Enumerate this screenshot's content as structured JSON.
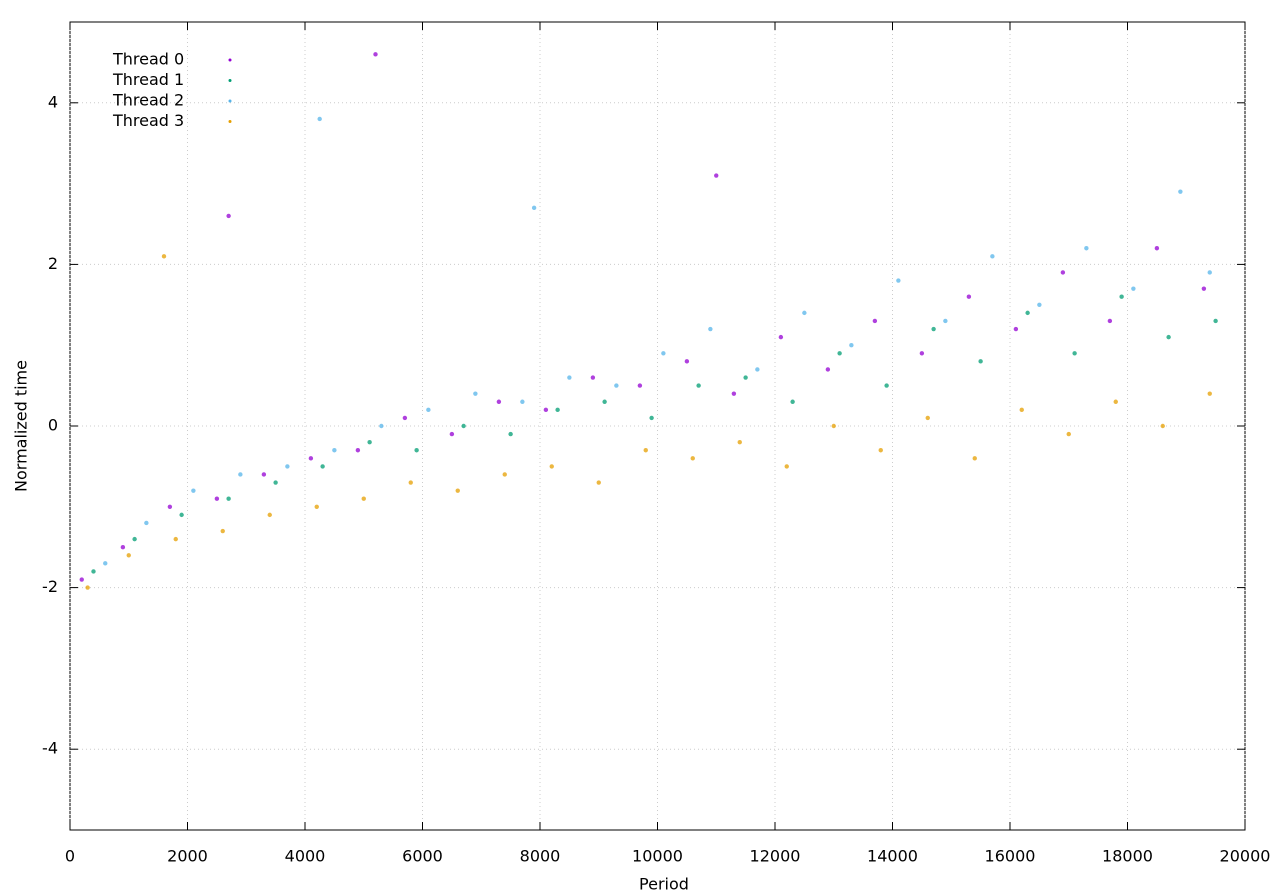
{
  "chart_data": {
    "type": "scatter",
    "x_label": "Period",
    "y_label": "Normalized time",
    "xlim": [
      0,
      20000
    ],
    "xticks": [
      0,
      2000,
      4000,
      6000,
      8000,
      10000,
      12000,
      14000,
      16000,
      18000,
      20000
    ],
    "ylim": [
      -5,
      5
    ],
    "yticks": [
      -4,
      -2,
      0,
      2,
      4
    ],
    "grid": true,
    "legend": "top-left",
    "series": [
      {
        "name": "Thread 0",
        "color": "#9400d3",
        "x": [
          200,
          900,
          1700,
          2500,
          3300,
          4100,
          4900,
          5700,
          6500,
          7300,
          8100,
          8900,
          9700,
          10500,
          11300,
          12100,
          12900,
          13700,
          14500,
          15300,
          16100,
          16900,
          17700,
          18500,
          19300,
          2700,
          5200,
          11000
        ],
        "values": [
          -1.9,
          -1.5,
          -1.0,
          -0.9,
          -0.6,
          -0.4,
          -0.3,
          0.1,
          -0.1,
          0.3,
          0.2,
          0.6,
          0.5,
          0.8,
          0.4,
          1.1,
          0.7,
          1.3,
          0.9,
          1.6,
          1.2,
          1.9,
          1.3,
          2.2,
          1.7,
          2.6,
          4.6,
          3.1
        ]
      },
      {
        "name": "Thread 1",
        "color": "#009e73",
        "x": [
          400,
          1100,
          1900,
          2700,
          3500,
          4300,
          5100,
          5900,
          6700,
          7500,
          8300,
          9100,
          9900,
          10700,
          11500,
          12300,
          13100,
          13900,
          14700,
          15500,
          16300,
          17100,
          17900,
          18700,
          19500
        ],
        "values": [
          -1.8,
          -1.4,
          -1.1,
          -0.9,
          -0.7,
          -0.5,
          -0.2,
          -0.3,
          0.0,
          -0.1,
          0.2,
          0.3,
          0.1,
          0.5,
          0.6,
          0.3,
          0.9,
          0.5,
          1.2,
          0.8,
          1.4,
          0.9,
          1.6,
          1.1,
          1.3
        ]
      },
      {
        "name": "Thread 2",
        "color": "#56b4e9",
        "x": [
          600,
          1300,
          2100,
          2900,
          3700,
          4500,
          5300,
          6100,
          6900,
          7700,
          8500,
          9300,
          10100,
          10900,
          11700,
          12500,
          13300,
          14100,
          14900,
          15700,
          16500,
          17300,
          18100,
          18900,
          19400,
          4250,
          7900
        ],
        "values": [
          -1.7,
          -1.2,
          -0.8,
          -0.6,
          -0.5,
          -0.3,
          0.0,
          0.2,
          0.4,
          0.3,
          0.6,
          0.5,
          0.9,
          1.2,
          0.7,
          1.4,
          1.0,
          1.8,
          1.3,
          2.1,
          1.5,
          2.2,
          1.7,
          2.9,
          1.9,
          3.8,
          2.7
        ]
      },
      {
        "name": "Thread 3",
        "color": "#e69f00",
        "x": [
          300,
          1000,
          1800,
          2600,
          3400,
          4200,
          5000,
          5800,
          6600,
          7400,
          8200,
          9000,
          9800,
          10600,
          11400,
          12200,
          13000,
          13800,
          14600,
          15400,
          16200,
          17000,
          17800,
          18600,
          19400,
          1600
        ],
        "values": [
          -2.0,
          -1.6,
          -1.4,
          -1.3,
          -1.1,
          -1.0,
          -0.9,
          -0.7,
          -0.8,
          -0.6,
          -0.5,
          -0.7,
          -0.3,
          -0.4,
          -0.2,
          -0.5,
          0.0,
          -0.3,
          0.1,
          -0.4,
          0.2,
          -0.1,
          0.3,
          0.0,
          0.4,
          2.1
        ]
      }
    ]
  }
}
